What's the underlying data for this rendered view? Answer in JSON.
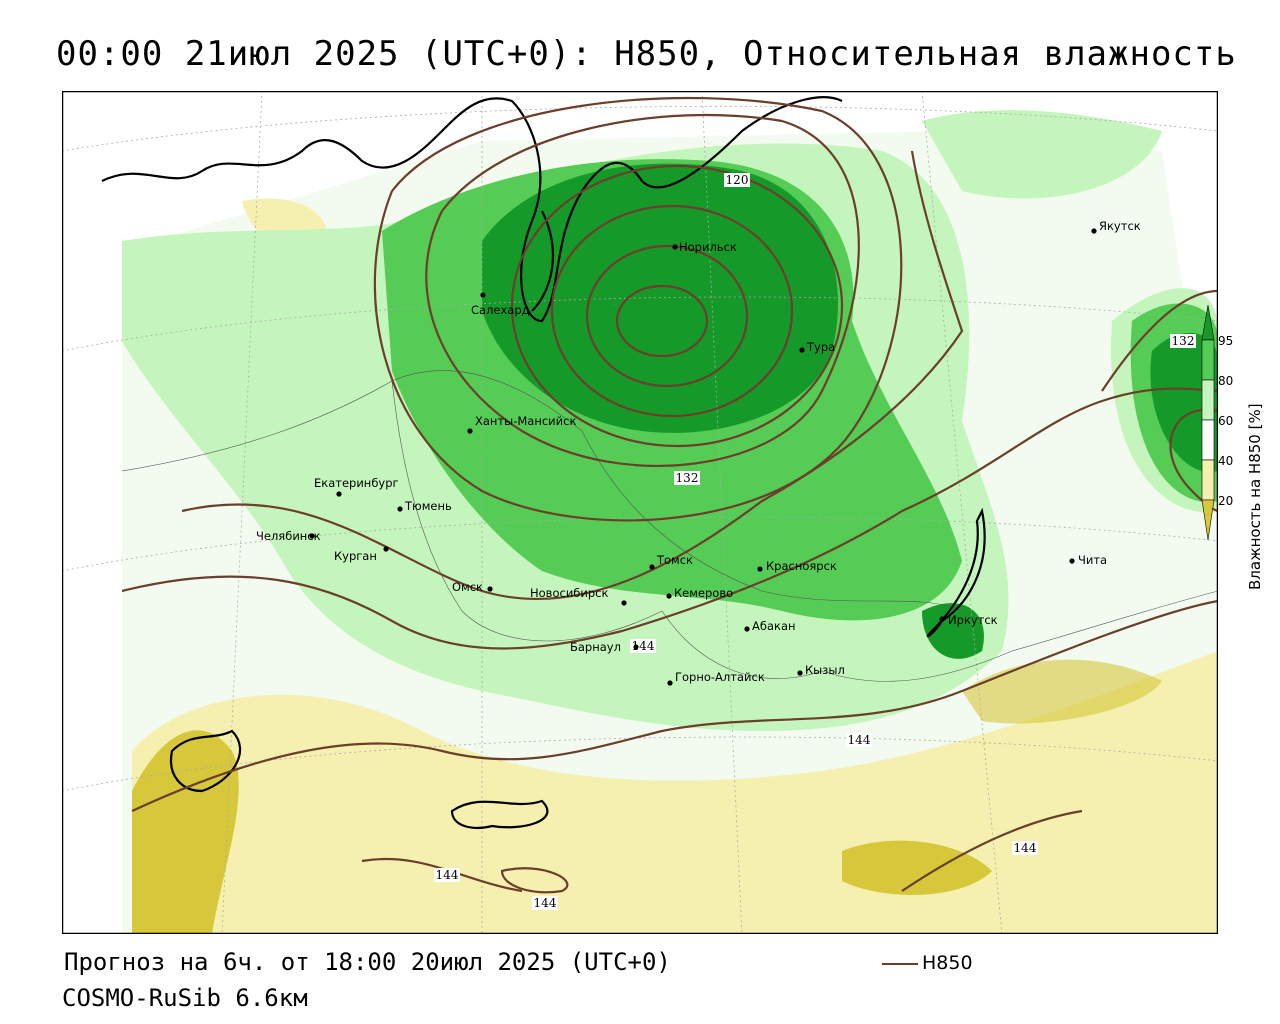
{
  "title": "00:00 21июл 2025 (UTC+0): H850, Относительная влажность",
  "forecast_line": "Прогноз на 6ч. от 18:00 20июл 2025 (UTC+0)",
  "model_line": "COSMO-RuSib 6.6км",
  "legend": {
    "line_label": "H850",
    "line_color": "#6b3f2a"
  },
  "colorbar": {
    "title": "Влажность на H850 [%]",
    "ticks": [
      "20",
      "40",
      "60",
      "80",
      "95"
    ],
    "colors": [
      "#d6c83a",
      "#f5f0b0",
      "#ffffff",
      "#c4f5bc",
      "#55cc55",
      "#159a2a"
    ]
  },
  "cities": [
    {
      "name": "Норильск"
    },
    {
      "name": "Салехард"
    },
    {
      "name": "Тура"
    },
    {
      "name": "Якутск"
    },
    {
      "name": "Ханты-Мансийск"
    },
    {
      "name": "Екатеринбург"
    },
    {
      "name": "Тюмень"
    },
    {
      "name": "Челябинск"
    },
    {
      "name": "Курган"
    },
    {
      "name": "Омск"
    },
    {
      "name": "Новосибирск"
    },
    {
      "name": "Томск"
    },
    {
      "name": "Кемерово"
    },
    {
      "name": "Красноярск"
    },
    {
      "name": "Барнаул"
    },
    {
      "name": "Абакан"
    },
    {
      "name": "Кызыл"
    },
    {
      "name": "Горно-Алтайск"
    },
    {
      "name": "Иркутск"
    },
    {
      "name": "Чита"
    }
  ],
  "contour_labels": [
    "120",
    "132",
    "132",
    "144",
    "144",
    "144",
    "144",
    "144"
  ]
}
